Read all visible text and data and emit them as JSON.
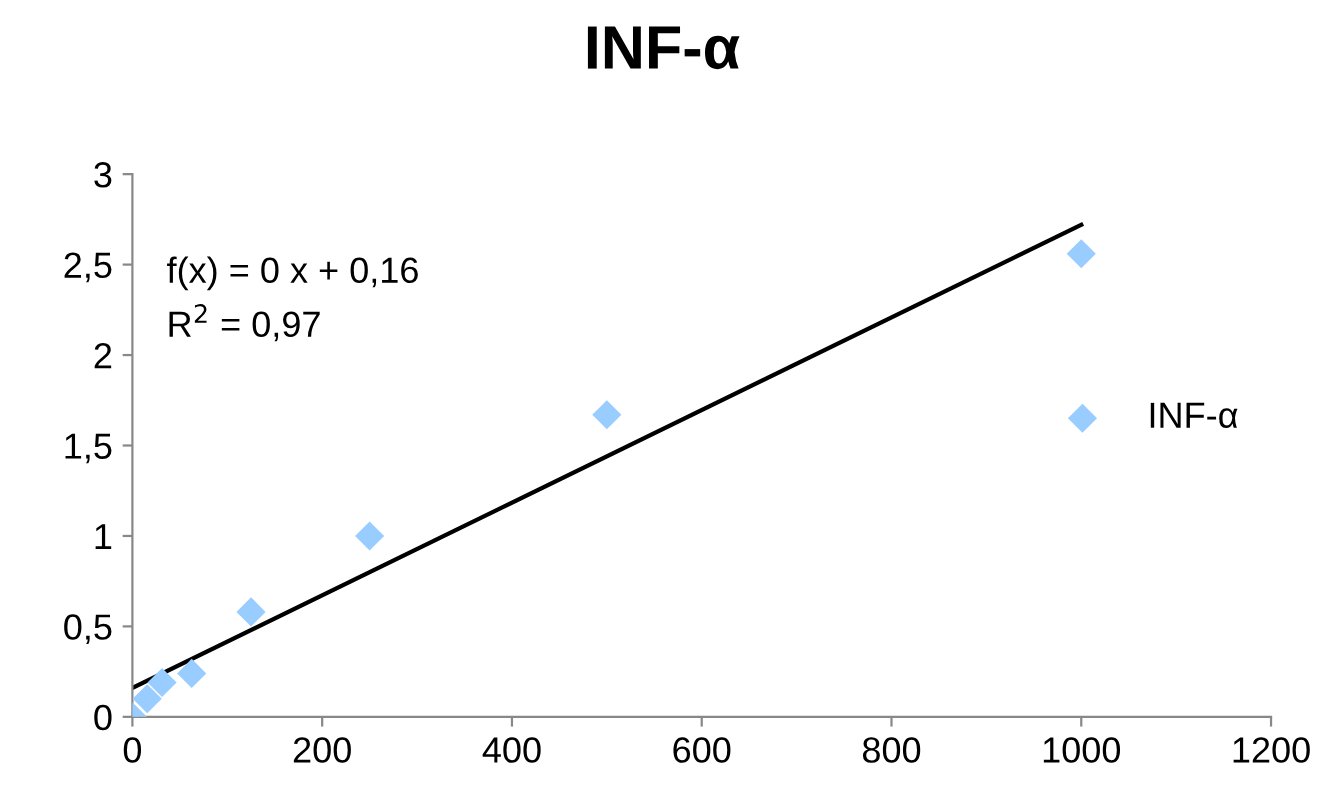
{
  "chart_data": {
    "type": "scatter",
    "title": "INF-α",
    "series": [
      {
        "name": "INF-α",
        "color": "#99ccff",
        "marker": "diamond",
        "x": [
          0,
          15.6,
          31.25,
          62.5,
          125,
          250,
          500,
          1000
        ],
        "values": [
          0,
          0.1,
          0.19,
          0.24,
          0.58,
          1.0,
          1.67,
          2.56
        ]
      },
      {
        "type": "line",
        "color": "#000000",
        "line_style": "solid",
        "x": [
          0,
          1000
        ],
        "values": [
          0.16,
          2.72
        ]
      }
    ],
    "xlim": [
      0,
      1200
    ],
    "xticks": [
      0,
      200,
      400,
      600,
      800,
      1000,
      1200
    ],
    "ylim": [
      0,
      3
    ],
    "yticks": [
      0,
      {
        "value": 0.5,
        "label": "0,5"
      },
      1,
      {
        "value": 1.5,
        "label": "1,5"
      },
      2,
      {
        "value": 2.5,
        "label": "2,5"
      },
      3
    ],
    "annotations": [
      "f(x) = 0 x + 0,16",
      "R$^{2}$ = 0,97"
    ],
    "grid": false,
    "legend": "right"
  }
}
